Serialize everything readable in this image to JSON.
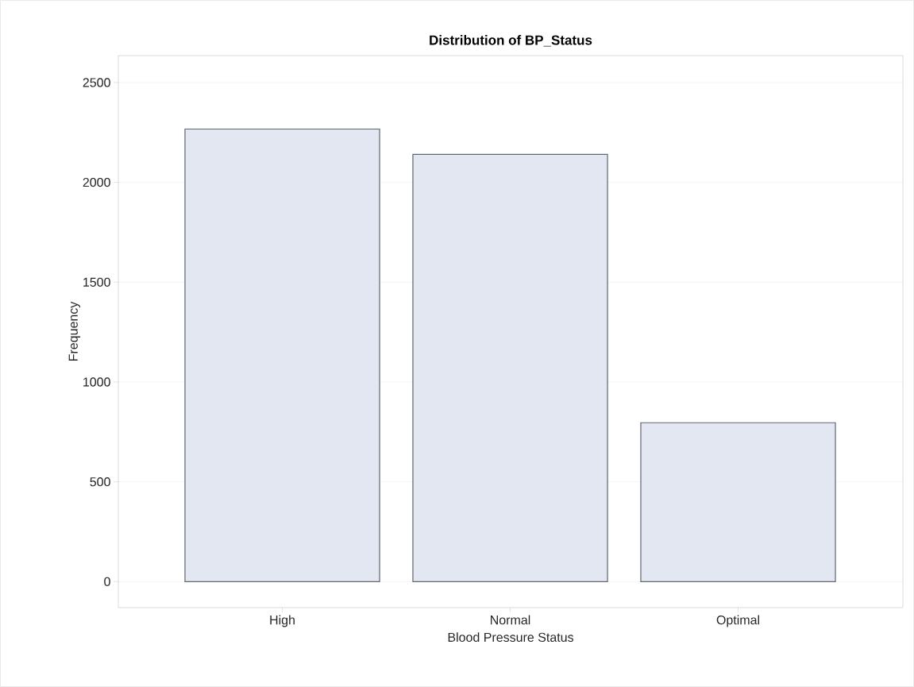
{
  "chart_data": {
    "type": "bar",
    "title": "Distribution of BP_Status",
    "xlabel": "Blood Pressure Status",
    "ylabel": "Frequency",
    "categories": [
      "High",
      "Normal",
      "Optimal"
    ],
    "values": [
      2267,
      2140,
      796
    ],
    "color": "#e3e7f1",
    "ylim": [
      -130,
      2635
    ],
    "yticks": [
      0,
      500,
      1000,
      1500,
      2000,
      2500
    ],
    "grid": "y"
  }
}
